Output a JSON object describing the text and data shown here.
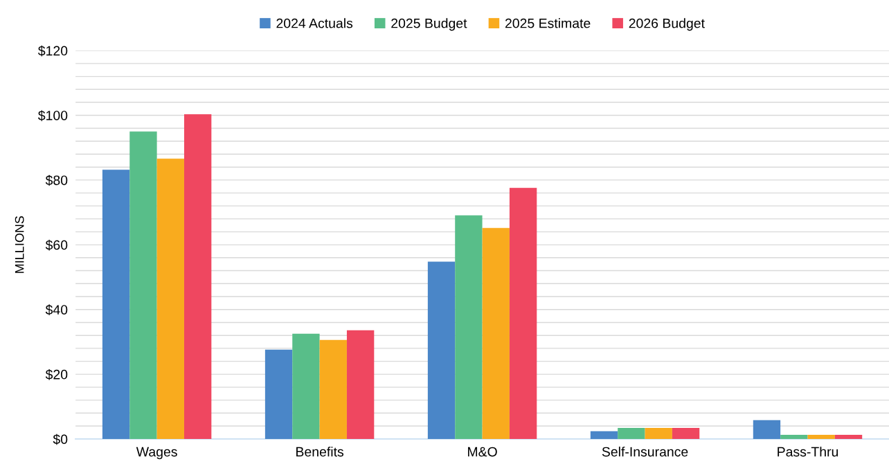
{
  "chart_data": {
    "type": "bar",
    "ylabel": "MILLIONS",
    "categories": [
      "Wages",
      "Benefits",
      "M&O",
      "Self-Insurance",
      "Pass-Thru"
    ],
    "series": [
      {
        "name": "2024 Actuals",
        "color": "#4a86c8",
        "values": [
          83.2,
          27.6,
          54.8,
          2.4,
          5.8
        ]
      },
      {
        "name": "2025 Budget",
        "color": "#58be89",
        "values": [
          95.0,
          32.5,
          69.1,
          3.4,
          1.3
        ]
      },
      {
        "name": "2025 Estimate",
        "color": "#f9ab1e",
        "values": [
          86.6,
          30.6,
          65.2,
          3.4,
          1.3
        ]
      },
      {
        "name": "2026 Budget",
        "color": "#ef4760",
        "values": [
          100.3,
          33.6,
          77.6,
          3.4,
          1.3
        ]
      }
    ],
    "ylim": [
      0,
      120
    ],
    "yticks": [
      {
        "value": 0,
        "label": "$0"
      },
      {
        "value": 4,
        "label": null
      },
      {
        "value": 8,
        "label": null
      },
      {
        "value": 12,
        "label": null
      },
      {
        "value": 16,
        "label": null
      },
      {
        "value": 20,
        "label": "$20"
      },
      {
        "value": 24,
        "label": null
      },
      {
        "value": 28,
        "label": null
      },
      {
        "value": 32,
        "label": null
      },
      {
        "value": 36,
        "label": null
      },
      {
        "value": 40,
        "label": "$40"
      },
      {
        "value": 44,
        "label": null
      },
      {
        "value": 48,
        "label": null
      },
      {
        "value": 52,
        "label": null
      },
      {
        "value": 56,
        "label": null
      },
      {
        "value": 60,
        "label": "$60"
      },
      {
        "value": 64,
        "label": null
      },
      {
        "value": 68,
        "label": null
      },
      {
        "value": 72,
        "label": null
      },
      {
        "value": 76,
        "label": null
      },
      {
        "value": 80,
        "label": "$80"
      },
      {
        "value": 84,
        "label": null
      },
      {
        "value": 88,
        "label": null
      },
      {
        "value": 92,
        "label": null
      },
      {
        "value": 96,
        "label": null
      },
      {
        "value": 100,
        "label": "$100"
      },
      {
        "value": 104,
        "label": null
      },
      {
        "value": 108,
        "label": null
      },
      {
        "value": 112,
        "label": null
      },
      {
        "value": 116,
        "label": null
      },
      {
        "value": 120,
        "label": "$120"
      }
    ],
    "grid": "y",
    "legend": "top"
  }
}
